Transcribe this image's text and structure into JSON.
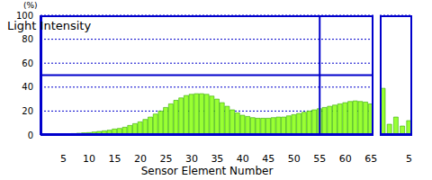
{
  "chart_data": [
    {
      "type": "bar",
      "title": "Light Intensity",
      "ylabel": "(%)",
      "xlabel": "Sensor Element Number",
      "x": [
        1,
        2,
        3,
        4,
        5,
        6,
        7,
        8,
        9,
        10,
        11,
        12,
        13,
        14,
        15,
        16,
        17,
        18,
        19,
        20,
        21,
        22,
        23,
        24,
        25,
        26,
        27,
        28,
        29,
        30,
        31,
        32,
        33,
        34,
        35,
        36,
        37,
        38,
        39,
        40,
        41,
        42,
        43,
        44,
        45,
        46,
        47,
        48,
        49,
        50,
        51,
        52,
        53,
        54,
        55,
        56,
        57,
        58,
        59,
        60,
        61,
        62,
        63,
        64,
        65
      ],
      "values": [
        0.5,
        0.5,
        0.5,
        0.8,
        1,
        1,
        1.2,
        1.5,
        1.8,
        2,
        2.5,
        3,
        3.5,
        4,
        5,
        5.5,
        6.5,
        8,
        9.5,
        11,
        13,
        15,
        17.5,
        20,
        23,
        26,
        29,
        31,
        33,
        34,
        34.5,
        34.5,
        34,
        32.5,
        30,
        27,
        24,
        21,
        18.5,
        16.5,
        15.5,
        14.5,
        14,
        14,
        14,
        14.5,
        15,
        15,
        16,
        17,
        18,
        19,
        20,
        21,
        22,
        23,
        24,
        25,
        26,
        27,
        28,
        28.5,
        28,
        27.5,
        26
      ],
      "color": "#99ff33",
      "xlim": [
        0.5,
        65.5
      ],
      "xticks": [
        5,
        10,
        15,
        20,
        25,
        30,
        35,
        40,
        45,
        50,
        55,
        60,
        65
      ],
      "ylim": [
        0,
        100
      ],
      "yticks": [
        0,
        20,
        40,
        60,
        80,
        100
      ],
      "grid": true,
      "hlines": [
        50
      ],
      "vlines": [
        55
      ]
    },
    {
      "type": "bar",
      "x": [
        1,
        2,
        3,
        4,
        5
      ],
      "values": [
        39,
        9,
        15,
        7.5,
        12
      ],
      "color": "#99ff33",
      "xlim": [
        0.5,
        5.5
      ],
      "xticks": [
        5
      ],
      "ylim": [
        0,
        100
      ],
      "yticks": [
        0,
        20,
        40,
        60,
        80,
        100
      ],
      "grid": true,
      "tick_labels": "x"
    }
  ]
}
